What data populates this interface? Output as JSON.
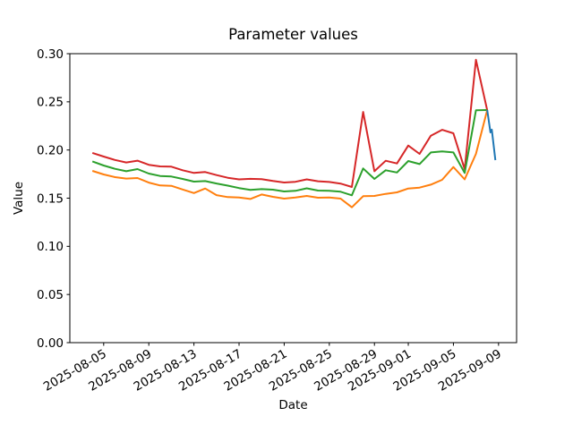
{
  "chart_data": {
    "type": "line",
    "title": "Parameter values",
    "xlabel": "Date",
    "ylabel": "Value",
    "ylim": [
      0.0,
      0.3
    ],
    "grid": false,
    "legend": "none",
    "y_tick_labels": [
      "0.00",
      "0.05",
      "0.10",
      "0.15",
      "0.20",
      "0.25",
      "0.30"
    ],
    "x_tick_labels": [
      "2025-08-05",
      "2025-08-09",
      "2025-08-13",
      "2025-08-17",
      "2025-08-21",
      "2025-08-25",
      "2025-08-29",
      "2025-09-01",
      "2025-09-05",
      "2025-09-09"
    ],
    "dates": [
      "2025-08-04",
      "2025-08-05",
      "2025-08-06",
      "2025-08-07",
      "2025-08-08",
      "2025-08-09",
      "2025-08-10",
      "2025-08-11",
      "2025-08-12",
      "2025-08-13",
      "2025-08-14",
      "2025-08-15",
      "2025-08-16",
      "2025-08-17",
      "2025-08-18",
      "2025-08-19",
      "2025-08-20",
      "2025-08-21",
      "2025-08-22",
      "2025-08-23",
      "2025-08-24",
      "2025-08-25",
      "2025-08-26",
      "2025-08-27",
      "2025-08-28",
      "2025-08-29",
      "2025-08-30",
      "2025-08-31",
      "2025-09-01",
      "2025-09-02",
      "2025-09-03",
      "2025-09-04",
      "2025-09-05",
      "2025-09-06",
      "2025-09-07",
      "2025-09-08"
    ],
    "series": [
      {
        "name": "red-series",
        "color": "#d62728",
        "values": [
          0.197,
          0.1932,
          0.1897,
          0.1871,
          0.1889,
          0.1846,
          0.183,
          0.1827,
          0.179,
          0.1762,
          0.1771,
          0.174,
          0.1712,
          0.1695,
          0.1701,
          0.1697,
          0.1678,
          0.1663,
          0.167,
          0.1695,
          0.1676,
          0.1668,
          0.1651,
          0.1616,
          0.2395,
          0.178,
          0.1888,
          0.186,
          0.2046,
          0.196,
          0.2148,
          0.221,
          0.2173,
          0.18,
          0.2937,
          0.2412
        ]
      },
      {
        "name": "green-series",
        "color": "#2ca02c",
        "values": [
          0.1882,
          0.1839,
          0.1805,
          0.178,
          0.1802,
          0.1755,
          0.173,
          0.1725,
          0.17,
          0.1672,
          0.1677,
          0.1652,
          0.163,
          0.1605,
          0.1586,
          0.1594,
          0.1588,
          0.157,
          0.1576,
          0.1602,
          0.1579,
          0.1576,
          0.1567,
          0.153,
          0.1808,
          0.17,
          0.179,
          0.1767,
          0.1885,
          0.1854,
          0.1975,
          0.1985,
          0.1975,
          0.1762,
          0.2412,
          0.2415
        ]
      },
      {
        "name": "orange-series",
        "color": "#ff7f0e",
        "values": [
          0.1783,
          0.1746,
          0.1718,
          0.1703,
          0.1709,
          0.1662,
          0.1632,
          0.1628,
          0.159,
          0.1553,
          0.16,
          0.1532,
          0.1511,
          0.1507,
          0.1492,
          0.1538,
          0.1514,
          0.1495,
          0.1507,
          0.1523,
          0.1505,
          0.1507,
          0.1495,
          0.1405,
          0.152,
          0.1523,
          0.1545,
          0.156,
          0.16,
          0.161,
          0.164,
          0.169,
          0.1823,
          0.1695,
          0.196,
          0.2415
        ]
      }
    ],
    "forecast_series": {
      "name": "blue-series",
      "color": "#1f77b4",
      "start_date": "2025-09-08",
      "day_offsets": [
        0,
        0.28,
        0.4,
        0.72
      ],
      "values": [
        0.2415,
        0.2183,
        0.2211,
        0.1895
      ]
    }
  }
}
